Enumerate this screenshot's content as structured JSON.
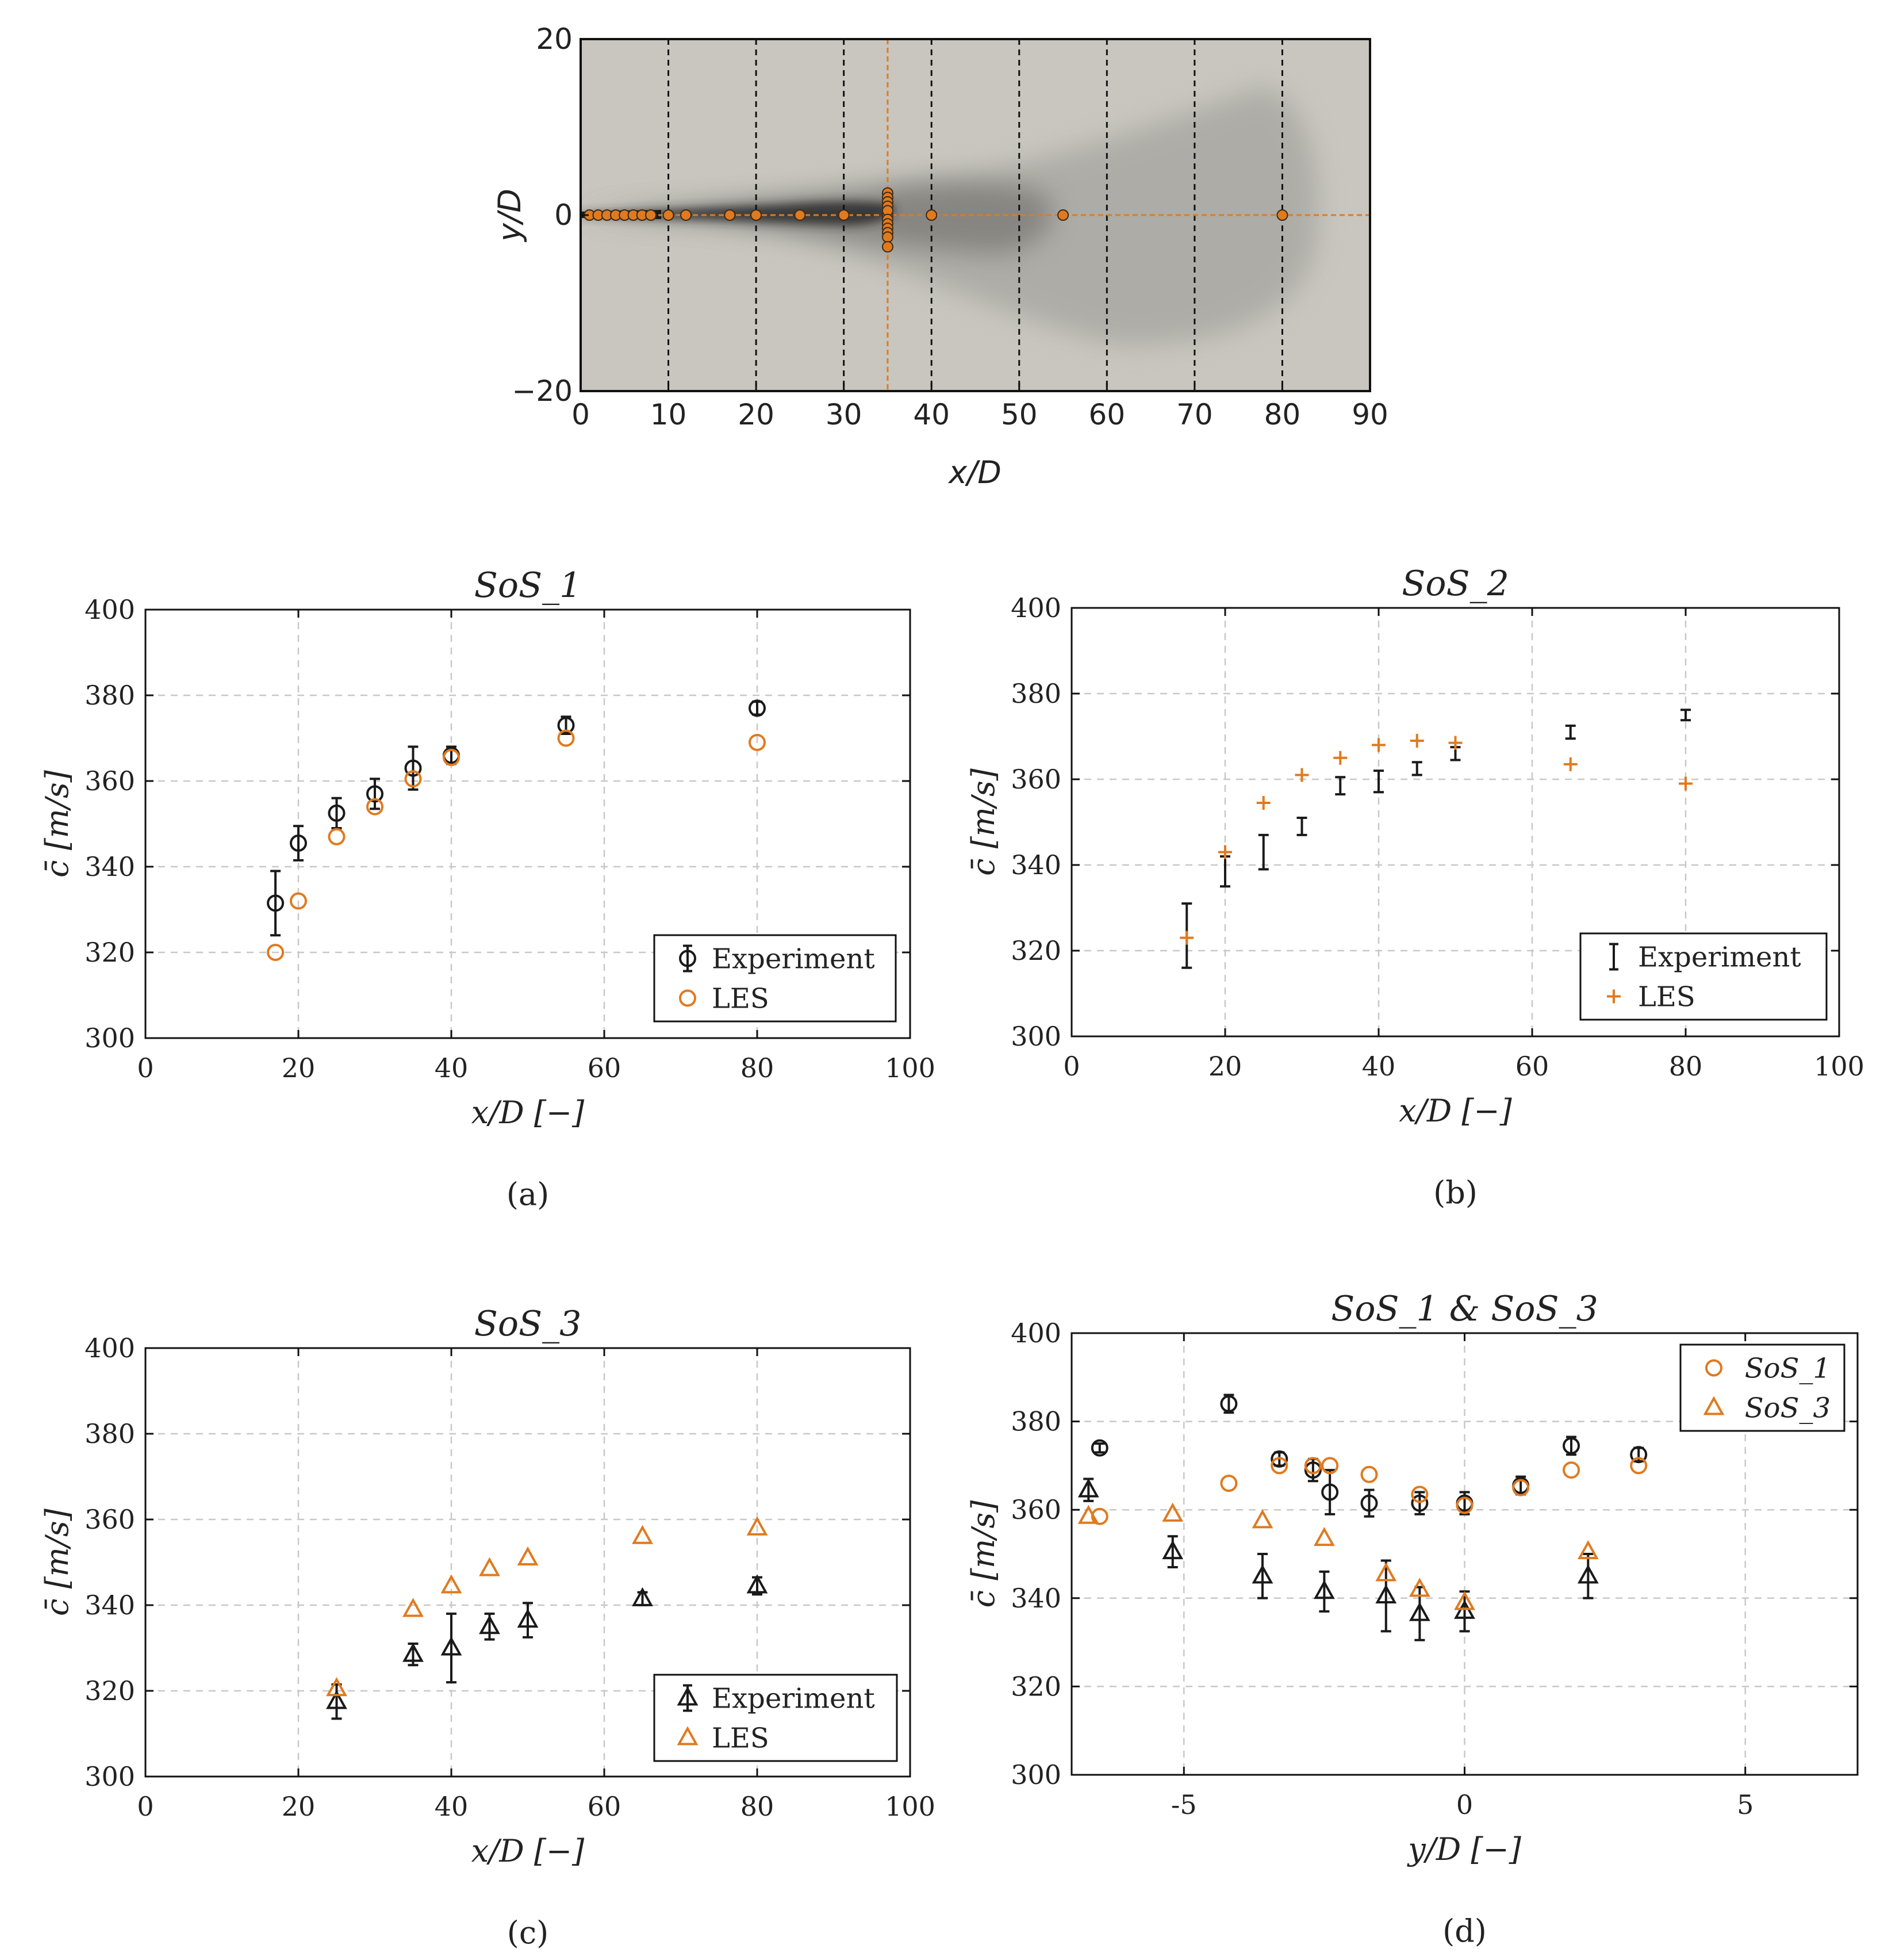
{
  "colors": {
    "experiment": "#1a1a1a",
    "les": "#e07a1f",
    "grid": "#c8c8c8",
    "jet_background": "#c8c6bf",
    "jet_plume": "#2a2a2a"
  },
  "chart_data": [
    {
      "id": "top",
      "type": "scatter",
      "description_label": "",
      "xlabel": "x/D",
      "ylabel": "y/D",
      "xlim": [
        0,
        90
      ],
      "ylim": [
        -20,
        20
      ],
      "xticks": [
        "0",
        "10",
        "20",
        "30",
        "40",
        "50",
        "60",
        "70",
        "80",
        "90"
      ],
      "yticks": [
        "20",
        "0",
        "−20"
      ],
      "dashed_x_lines": [
        10,
        20,
        30,
        40,
        50,
        60,
        70,
        80
      ],
      "crosshair_x": 35,
      "crosshair_y": 0,
      "probe_points_x": [
        1,
        2,
        3,
        4,
        5,
        6,
        7,
        8,
        10,
        12,
        17,
        20,
        25,
        30,
        35,
        40,
        55,
        80
      ],
      "probe_points_y_at_35": [
        2.5,
        2,
        1.5,
        1,
        0.5,
        -0.5,
        -1,
        -1.5,
        -2,
        -2.5,
        -3.6
      ]
    },
    {
      "id": "a",
      "type": "scatter",
      "title": "SoS_1",
      "xlabel": "x/D [−]",
      "ylabel": "c̄ [m/s]",
      "xlim": [
        0,
        100
      ],
      "ylim": [
        300,
        400
      ],
      "xticks": [
        "0",
        "20",
        "40",
        "60",
        "80",
        "100"
      ],
      "yticks": [
        "300",
        "320",
        "340",
        "360",
        "380",
        "400"
      ],
      "panel_label": "(a)",
      "legend": [
        "Experiment",
        "LES"
      ],
      "legend_position": "bottom-right",
      "experiment_marker": "circle",
      "les_marker": "circle",
      "experiment": [
        {
          "x": 17,
          "y": 331.5,
          "err": 7.5
        },
        {
          "x": 20,
          "y": 345.5,
          "err": 4
        },
        {
          "x": 25,
          "y": 352.5,
          "err": 3.5
        },
        {
          "x": 30,
          "y": 357,
          "err": 3.5
        },
        {
          "x": 35,
          "y": 363,
          "err": 5
        },
        {
          "x": 40,
          "y": 366,
          "err": 2
        },
        {
          "x": 55,
          "y": 373,
          "err": 2
        },
        {
          "x": 80,
          "y": 377,
          "err": 1.5
        }
      ],
      "les": [
        {
          "x": 17,
          "y": 320
        },
        {
          "x": 20,
          "y": 332
        },
        {
          "x": 25,
          "y": 347
        },
        {
          "x": 30,
          "y": 354
        },
        {
          "x": 35,
          "y": 360.5
        },
        {
          "x": 40,
          "y": 365.5
        },
        {
          "x": 55,
          "y": 370
        },
        {
          "x": 80,
          "y": 369
        }
      ]
    },
    {
      "id": "b",
      "type": "scatter",
      "title": "SoS_2",
      "xlabel": "x/D [−]",
      "ylabel": "c̄ [m/s]",
      "xlim": [
        0,
        100
      ],
      "ylim": [
        300,
        400
      ],
      "xticks": [
        "0",
        "20",
        "40",
        "60",
        "80",
        "100"
      ],
      "yticks": [
        "300",
        "320",
        "340",
        "360",
        "380",
        "400"
      ],
      "panel_label": "(b)",
      "legend": [
        "Experiment",
        "LES"
      ],
      "legend_position": "bottom-right",
      "experiment_marker": "none",
      "les_marker": "plus",
      "experiment": [
        {
          "x": 15,
          "y": 323.5,
          "err": 7.5
        },
        {
          "x": 20,
          "y": 338.5,
          "err": 3.5
        },
        {
          "x": 25,
          "y": 343,
          "err": 4
        },
        {
          "x": 30,
          "y": 349,
          "err": 2
        },
        {
          "x": 35,
          "y": 358.5,
          "err": 2
        },
        {
          "x": 40,
          "y": 359.5,
          "err": 2.5
        },
        {
          "x": 45,
          "y": 362.5,
          "err": 1.5
        },
        {
          "x": 50,
          "y": 366,
          "err": 1.5
        },
        {
          "x": 65,
          "y": 371,
          "err": 1.5
        },
        {
          "x": 80,
          "y": 375,
          "err": 1.2
        }
      ],
      "les": [
        {
          "x": 15,
          "y": 323
        },
        {
          "x": 20,
          "y": 343
        },
        {
          "x": 25,
          "y": 354.5
        },
        {
          "x": 30,
          "y": 361
        },
        {
          "x": 35,
          "y": 365
        },
        {
          "x": 40,
          "y": 368
        },
        {
          "x": 45,
          "y": 369
        },
        {
          "x": 50,
          "y": 368.5
        },
        {
          "x": 65,
          "y": 363.5
        },
        {
          "x": 80,
          "y": 359
        }
      ]
    },
    {
      "id": "c",
      "type": "scatter",
      "title": "SoS_3",
      "xlabel": "x/D [−]",
      "ylabel": "c̄ [m/s]",
      "xlim": [
        0,
        100
      ],
      "ylim": [
        300,
        400
      ],
      "xticks": [
        "0",
        "20",
        "40",
        "60",
        "80",
        "100"
      ],
      "yticks": [
        "300",
        "320",
        "340",
        "360",
        "380",
        "400"
      ],
      "panel_label": "(c)",
      "legend": [
        "Experiment",
        "LES"
      ],
      "legend_position": "bottom-right",
      "experiment_marker": "triangle",
      "les_marker": "triangle",
      "experiment": [
        {
          "x": 25,
          "y": 317.5,
          "err": 4
        },
        {
          "x": 35,
          "y": 328.5,
          "err": 2.5
        },
        {
          "x": 40,
          "y": 330,
          "err": 8
        },
        {
          "x": 45,
          "y": 335,
          "err": 3
        },
        {
          "x": 50,
          "y": 336.5,
          "err": 4
        },
        {
          "x": 65,
          "y": 341.5,
          "err": 1.5
        },
        {
          "x": 80,
          "y": 344.5,
          "err": 2
        }
      ],
      "les": [
        {
          "x": 25,
          "y": 320.5
        },
        {
          "x": 35,
          "y": 339
        },
        {
          "x": 40,
          "y": 344.5
        },
        {
          "x": 45,
          "y": 348.5
        },
        {
          "x": 50,
          "y": 351
        },
        {
          "x": 65,
          "y": 356
        },
        {
          "x": 80,
          "y": 358
        }
      ]
    },
    {
      "id": "d",
      "type": "scatter",
      "title": "SoS_1 & SoS_3",
      "xlabel": "y/D [−]",
      "ylabel": "c̄ [m/s]",
      "xlim": [
        -7,
        7
      ],
      "ylim": [
        300,
        400
      ],
      "xticks_values": [
        -5,
        0,
        5
      ],
      "xticks": [
        "-5",
        "0",
        "5"
      ],
      "yticks": [
        "300",
        "320",
        "340",
        "360",
        "380",
        "400"
      ],
      "panel_label": "(d)",
      "legend": [
        "SoS_1",
        "SoS_3"
      ],
      "legend_position": "top-right",
      "exp_sos1": [
        {
          "x": -6.5,
          "y": 374,
          "err": 1
        },
        {
          "x": -4.2,
          "y": 384,
          "err": 2
        },
        {
          "x": -3.3,
          "y": 371.5,
          "err": 1.5
        },
        {
          "x": -2.7,
          "y": 369,
          "err": 2.5
        },
        {
          "x": -2.4,
          "y": 364,
          "err": 5
        },
        {
          "x": -1.7,
          "y": 361.5,
          "err": 3
        },
        {
          "x": -0.8,
          "y": 361.5,
          "err": 2.5
        },
        {
          "x": 0,
          "y": 361.5,
          "err": 2.5
        },
        {
          "x": 1,
          "y": 365.5,
          "err": 2
        },
        {
          "x": 1.9,
          "y": 374.5,
          "err": 2
        },
        {
          "x": 3.1,
          "y": 372.5,
          "err": 1.5
        }
      ],
      "les_sos1": [
        {
          "x": -6.5,
          "y": 358.5
        },
        {
          "x": -4.2,
          "y": 366
        },
        {
          "x": -3.3,
          "y": 370
        },
        {
          "x": -2.7,
          "y": 370
        },
        {
          "x": -2.4,
          "y": 370
        },
        {
          "x": -1.7,
          "y": 368
        },
        {
          "x": -0.8,
          "y": 363.5
        },
        {
          "x": 0,
          "y": 361
        },
        {
          "x": 1,
          "y": 365
        },
        {
          "x": 1.9,
          "y": 369
        },
        {
          "x": 3.1,
          "y": 370
        }
      ],
      "exp_sos3": [
        {
          "x": -6.7,
          "y": 364.5,
          "err": 2.5
        },
        {
          "x": -5.2,
          "y": 350.5,
          "err": 3.5
        },
        {
          "x": -3.6,
          "y": 345,
          "err": 5
        },
        {
          "x": -2.5,
          "y": 341.5,
          "err": 4.5
        },
        {
          "x": -1.4,
          "y": 340.5,
          "err": 8
        },
        {
          "x": -0.8,
          "y": 336.5,
          "err": 6
        },
        {
          "x": 0,
          "y": 337,
          "err": 4.5
        },
        {
          "x": 2.2,
          "y": 345,
          "err": 5
        }
      ],
      "les_sos3": [
        {
          "x": -6.7,
          "y": 358.5
        },
        {
          "x": -5.2,
          "y": 359
        },
        {
          "x": -3.6,
          "y": 357.5
        },
        {
          "x": -2.5,
          "y": 353.5
        },
        {
          "x": -1.4,
          "y": 345.5
        },
        {
          "x": -0.8,
          "y": 342
        },
        {
          "x": 0,
          "y": 339
        },
        {
          "x": 2.2,
          "y": 350.5
        }
      ]
    }
  ]
}
